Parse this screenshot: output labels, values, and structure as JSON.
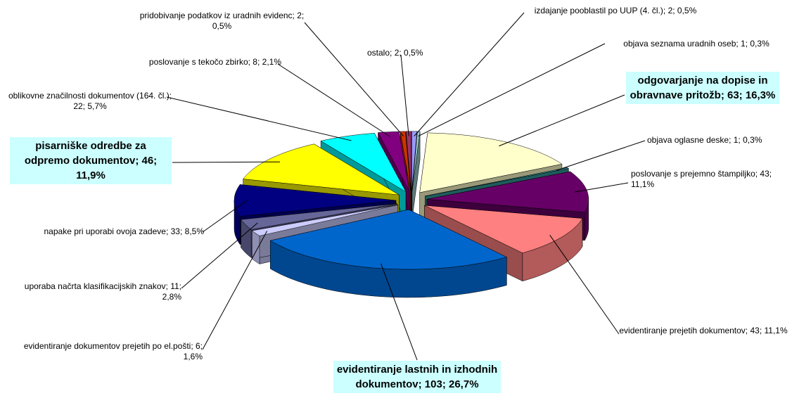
{
  "chart_data": {
    "type": "pie3d",
    "value_labels": [
      "izdajanje pooblastil po UUP (4. čl.); 2; 0,5%",
      "objava seznama uradnih oseb; 1; 0,3%",
      "odgovarjanje na dopise in obravnave pritožb; 63; 16,3%",
      "objava oglasne deske; 1; 0,3%",
      "poslovanje s prejemno štampiljko; 43; 11,1%",
      "evidentiranje prejetih dokumentov; 43; 11,1%",
      "evidentiranje lastnih in izhodnih dokumentov; 103; 26,7%",
      "evidentiranje dokumentov prejetih po el.pošti; 6; 1,6%",
      "uporaba načrta klasifikacijskih znakov; 11; 2,8%",
      "napake pri uporabi ovoja zadeve; 33; 8,5%",
      "pisarniške odredbe za odpremo dokumentov; 46; 11,9%",
      "oblikovne značilnosti dokumentov (164. čl.); 22; 5,7%",
      "poslovanje s tekočo zbirko; 8; 2,1%",
      "pridobivanje podatkov iz uradnih evidenc; 2; 0,5%",
      "ostalo; 2; 0,5%"
    ],
    "values": [
      2,
      1,
      63,
      1,
      43,
      43,
      103,
      6,
      11,
      33,
      46,
      22,
      8,
      2,
      2
    ],
    "colors": [
      "#9999ff",
      "#99cccc",
      "#ffffcc",
      "#339999",
      "#660066",
      "#ff8080",
      "#0066cc",
      "#ccccff",
      "#666699",
      "#000080",
      "#ffff00",
      "#00ffff",
      "#800080",
      "#cc3300",
      "#993366"
    ]
  }
}
